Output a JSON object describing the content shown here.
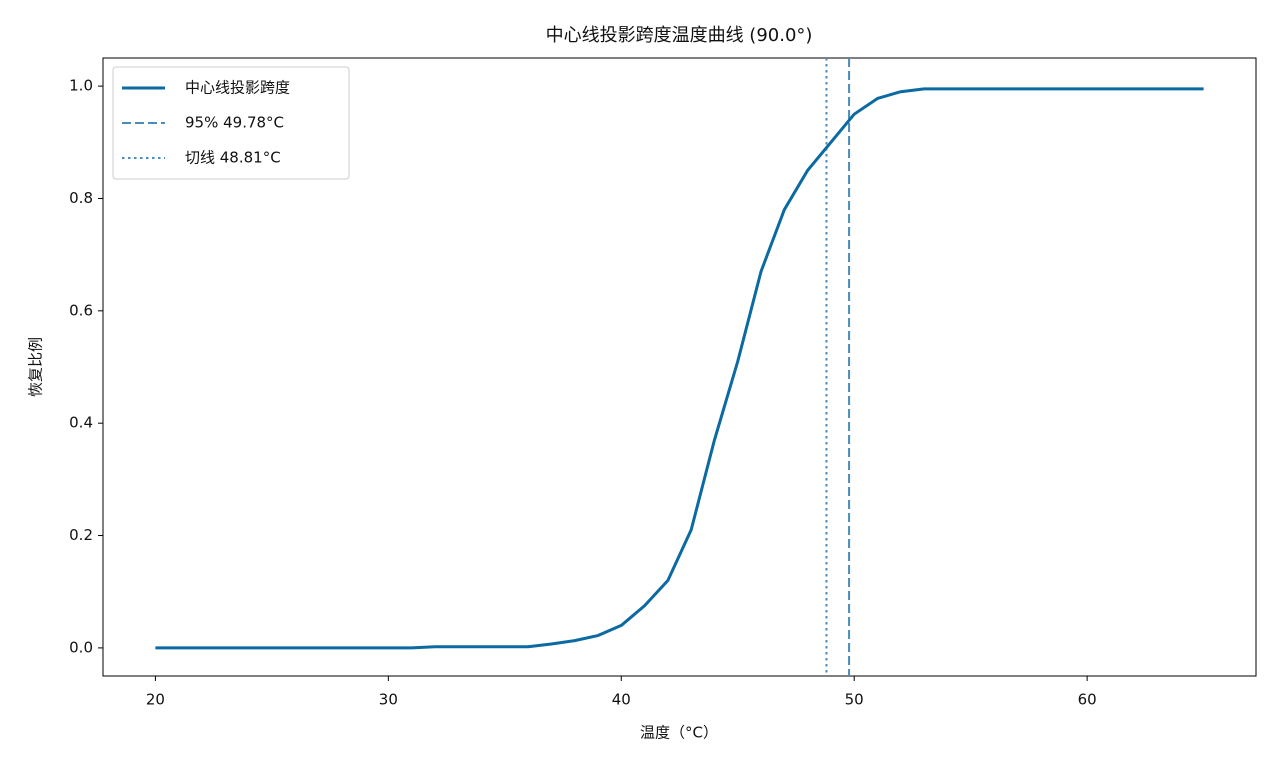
{
  "chart_data": {
    "type": "line",
    "title": "中心线投影跨度温度曲线 (90.0°)",
    "xlabel": "温度（°C）",
    "ylabel": "恢复比例",
    "x": [
      20,
      21,
      22,
      23,
      24,
      25,
      26,
      27,
      28,
      29,
      30,
      31,
      32,
      33,
      34,
      35,
      36,
      37,
      38,
      39,
      40,
      41,
      42,
      43,
      44,
      45,
      46,
      47,
      48,
      49,
      50,
      51,
      52,
      53,
      54,
      55,
      56,
      57,
      58,
      59,
      60,
      61,
      62,
      63,
      64,
      65
    ],
    "series": [
      {
        "name": "中心线投影跨度",
        "color": "#0a6aa1",
        "values": [
          0,
          0,
          0,
          0,
          0,
          0,
          0,
          0,
          0,
          0,
          0,
          0,
          0.002,
          0.002,
          0.002,
          0.002,
          0.002,
          0.007,
          0.013,
          0.022,
          0.04,
          0.075,
          0.12,
          0.21,
          0.37,
          0.51,
          0.67,
          0.78,
          0.85,
          0.9,
          0.95,
          0.978,
          0.99,
          0.995,
          0.995,
          0.995,
          0.995,
          0.995,
          0.995,
          0.995,
          0.995,
          0.995,
          0.995,
          0.995,
          0.995,
          0.995
        ]
      }
    ],
    "vlines": [
      {
        "name": "95% 49.78°C",
        "x": 49.78,
        "color": "#4a8cbb",
        "dash": "dashed"
      },
      {
        "name": "切线 48.81°C",
        "x": 48.81,
        "color": "#4a8cbb",
        "dash": "dotted"
      }
    ],
    "xlim": [
      17.75,
      67.25
    ],
    "ylim": [
      -0.05,
      1.05
    ],
    "xticks": [
      20,
      30,
      40,
      50,
      60
    ],
    "yticks": [
      {
        "value": 0,
        "label": "0.0"
      },
      0.2,
      0.4,
      0.6,
      0.8,
      {
        "value": 1,
        "label": "1.0"
      }
    ],
    "grid": false,
    "legend": "upper left"
  }
}
